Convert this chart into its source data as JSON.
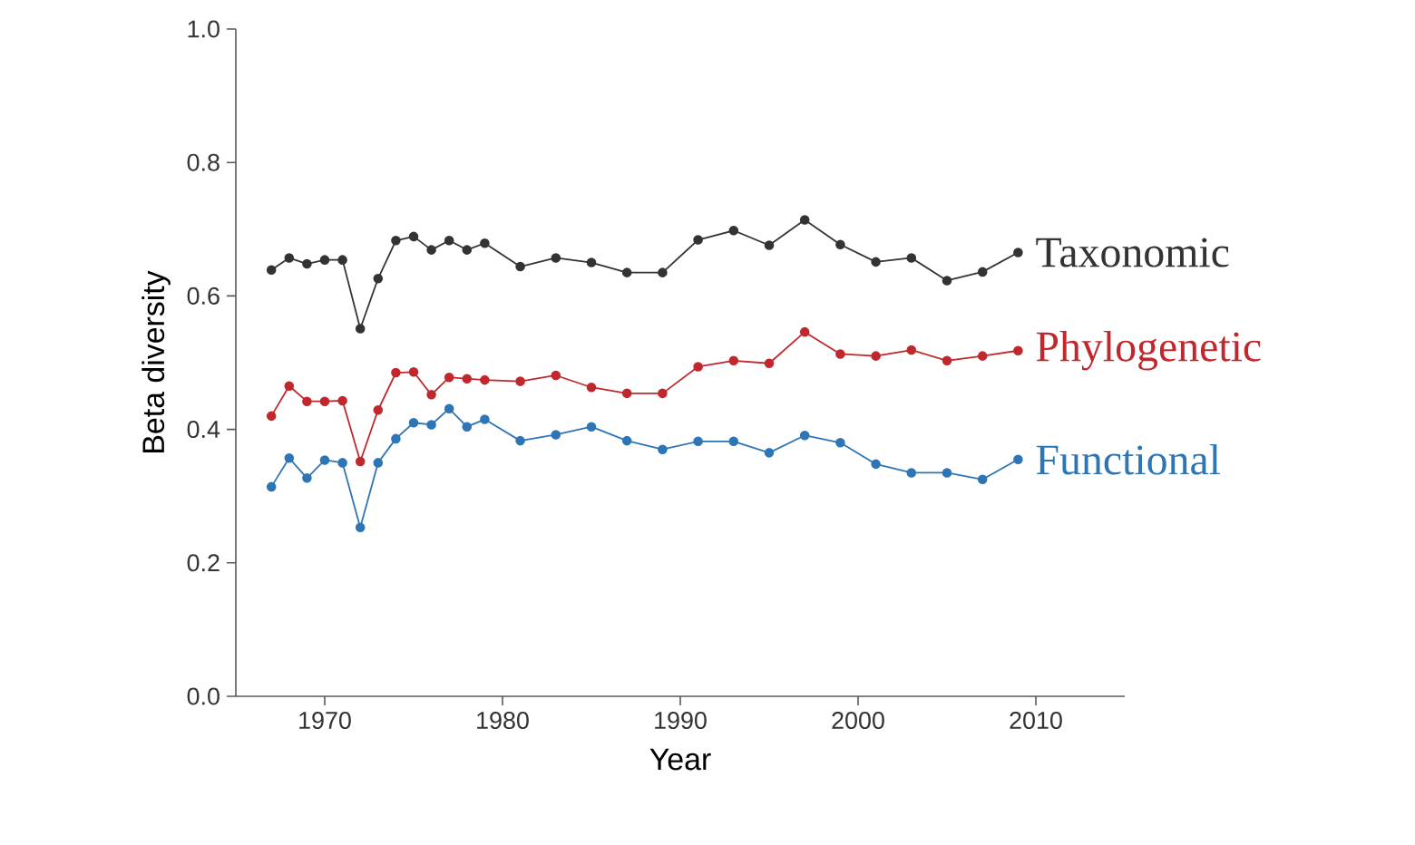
{
  "chart_data": {
    "type": "line",
    "xlabel": "Year",
    "ylabel": "Beta diversity",
    "x": [
      1967,
      1968,
      1969,
      1970,
      1971,
      1972,
      1973,
      1974,
      1975,
      1976,
      1977,
      1978,
      1979,
      1981,
      1983,
      1985,
      1987,
      1989,
      1991,
      1993,
      1995,
      1997,
      1999,
      2001,
      2003,
      2005,
      2007,
      2009
    ],
    "series": [
      {
        "name": "Taxonomic",
        "color": "#333333",
        "values": [
          0.639,
          0.657,
          0.648,
          0.654,
          0.654,
          0.551,
          0.626,
          0.683,
          0.689,
          0.669,
          0.683,
          0.669,
          0.679,
          0.644,
          0.657,
          0.65,
          0.635,
          0.635,
          0.684,
          0.698,
          0.676,
          0.714,
          0.677,
          0.651,
          0.657,
          0.623,
          0.636,
          0.665
        ]
      },
      {
        "name": "Phylogenetic",
        "color": "#c0282d",
        "values": [
          0.42,
          0.465,
          0.442,
          0.442,
          0.443,
          0.352,
          0.429,
          0.485,
          0.486,
          0.452,
          0.478,
          0.476,
          0.474,
          0.472,
          0.481,
          0.463,
          0.454,
          0.454,
          0.494,
          0.503,
          0.499,
          0.546,
          0.513,
          0.51,
          0.519,
          0.503,
          0.51,
          0.518
        ]
      },
      {
        "name": "Functional",
        "color": "#2e75b6",
        "values": [
          0.314,
          0.357,
          0.327,
          0.354,
          0.35,
          0.253,
          0.35,
          0.386,
          0.41,
          0.407,
          0.431,
          0.404,
          0.415,
          0.383,
          0.392,
          0.404,
          0.383,
          0.37,
          0.382,
          0.382,
          0.365,
          0.391,
          0.38,
          0.348,
          0.335,
          0.335,
          0.325,
          0.355
        ]
      }
    ],
    "xlim": [
      1965,
      2015
    ],
    "ylim": [
      0,
      1
    ],
    "xticks": [
      1970,
      1980,
      1990,
      2000,
      2010
    ],
    "yticks": [
      {
        "value": 0,
        "label": "0.0"
      },
      {
        "value": 0.2,
        "label": "0.2"
      },
      {
        "value": 0.4,
        "label": "0.4"
      },
      {
        "value": 0.6,
        "label": "0.6"
      },
      {
        "value": 0.8,
        "label": "0.8"
      },
      {
        "value": 1,
        "label": "1.0"
      }
    ],
    "grid": false,
    "legend": false,
    "marker": "circle",
    "line_style": "solid"
  }
}
